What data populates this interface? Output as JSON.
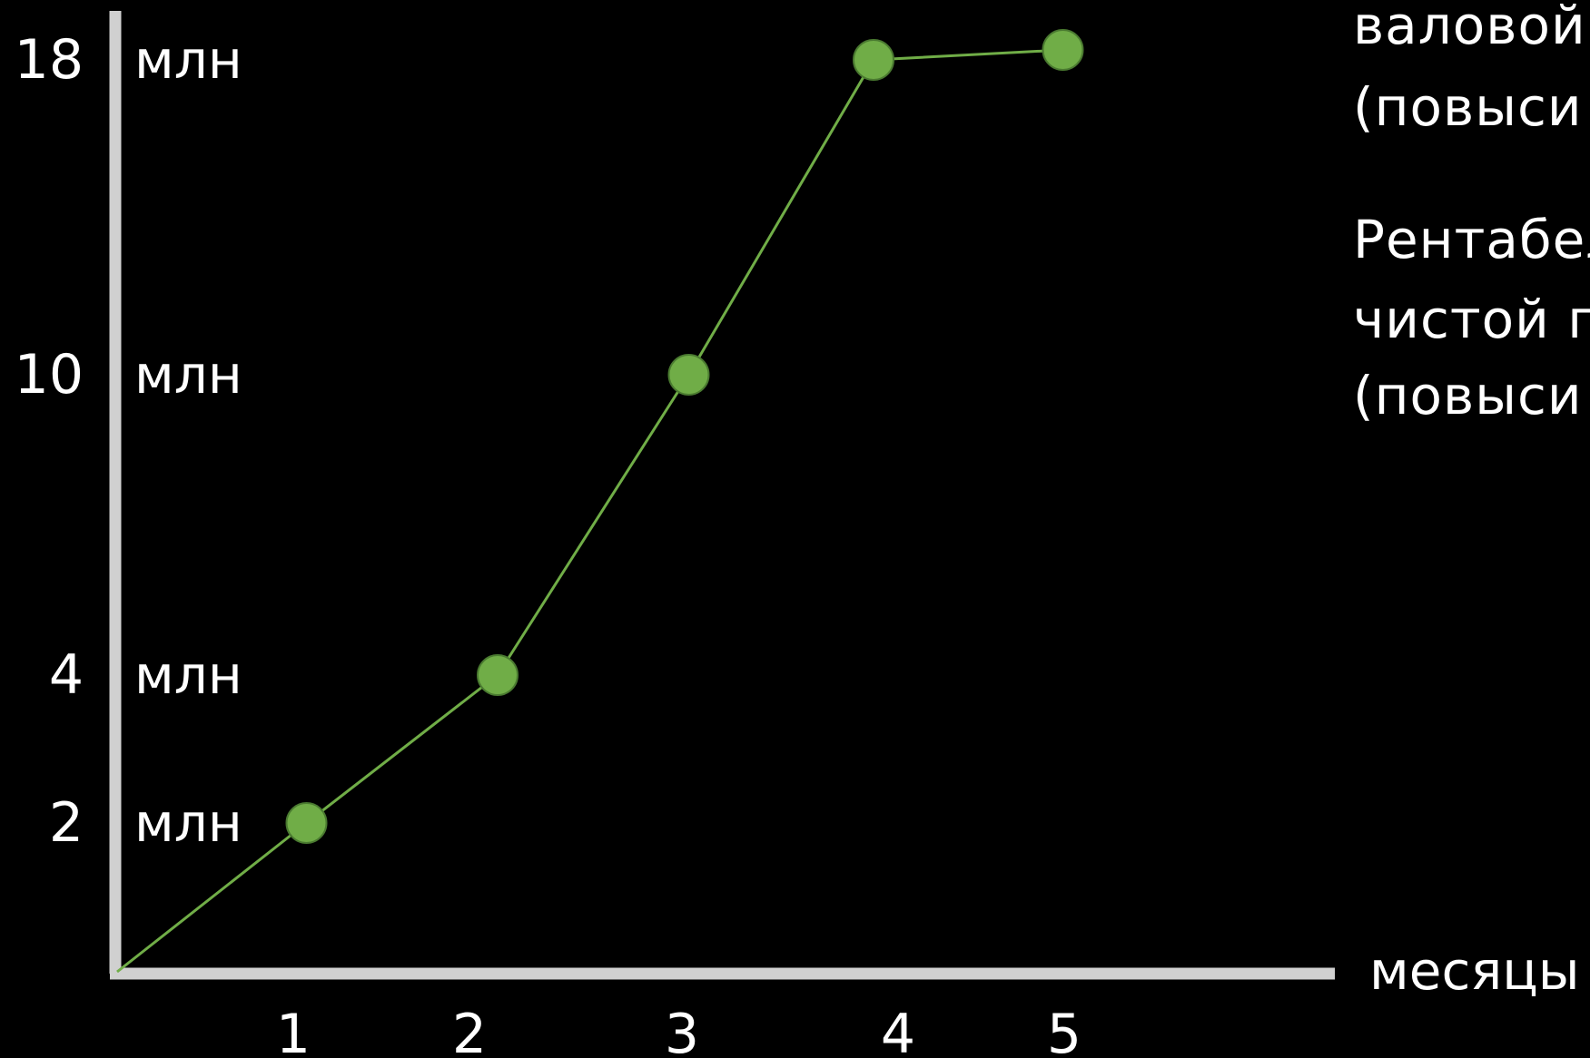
{
  "chart_data": {
    "type": "line",
    "x_label": "месяцы",
    "x_ticks": [
      "1",
      "2",
      "3",
      "4",
      "5"
    ],
    "y_ticks": [
      {
        "value": 18,
        "label": "18",
        "unit": "млн"
      },
      {
        "value": 10,
        "label": "10",
        "unit": "млн"
      },
      {
        "value": 4,
        "label": "4",
        "unit": "млн"
      },
      {
        "value": 2,
        "label": "2",
        "unit": "млн"
      }
    ],
    "series": [
      {
        "origin": {
          "x": 0,
          "y": 0
        },
        "points": [
          {
            "x": 1,
            "y": 2
          },
          {
            "x": 2,
            "y": 4
          },
          {
            "x": 3,
            "y": 10
          },
          {
            "x": 4,
            "y": 18
          },
          {
            "x": 5,
            "y": 18.3
          }
        ]
      }
    ],
    "line_color": "#70ad47",
    "marker_color": "#70ad47",
    "axis_color": "#d0d0d0",
    "background": "#000000"
  },
  "side_text": {
    "line1": "валовой",
    "line2": "(повыси",
    "line3": "Рентабел",
    "line4": "чистой п",
    "line5": "(повыси"
  }
}
